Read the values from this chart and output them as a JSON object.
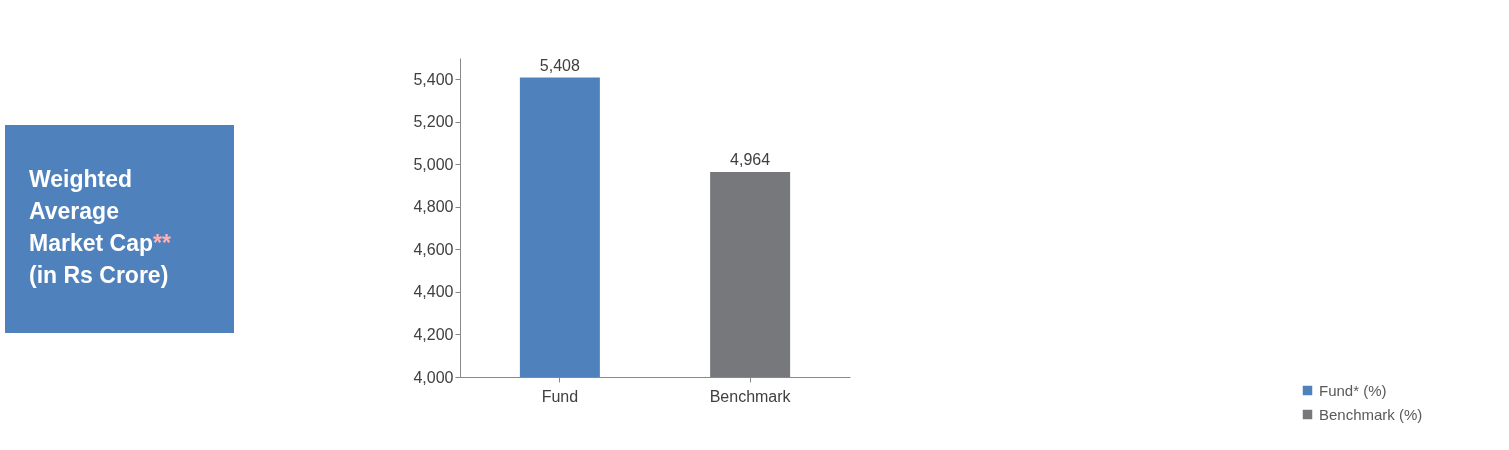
{
  "chart_data": {
    "type": "bar",
    "title": "Weighted Average Market Cap** (in Rs Crore)",
    "categories": [
      "Fund",
      "Benchmark"
    ],
    "series": [
      {
        "name": "Fund* (%)",
        "color": "#4f81bd",
        "values": [
          5408,
          null
        ],
        "value_labels": [
          "5,408",
          null
        ]
      },
      {
        "name": "Benchmark (%)",
        "color": "#77787b",
        "values": [
          null,
          4964
        ],
        "value_labels": [
          null,
          "4,964"
        ]
      }
    ],
    "ylim": [
      4000,
      5500
    ],
    "yticks": [
      {
        "value": 4000,
        "label": "4,000"
      },
      {
        "value": 4200,
        "label": "4,200"
      },
      {
        "value": 4400,
        "label": "4,400"
      },
      {
        "value": 4600,
        "label": "4,600"
      },
      {
        "value": 4800,
        "label": "4,800"
      },
      {
        "value": 5000,
        "label": "5,000"
      },
      {
        "value": 5200,
        "label": "5,200"
      },
      {
        "value": 5400,
        "label": "5,400"
      }
    ],
    "grid": false,
    "legend": "bottom right"
  }
}
